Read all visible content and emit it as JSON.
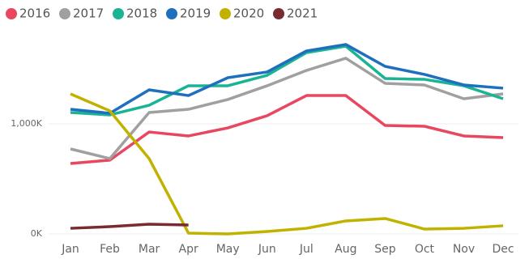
{
  "chart_data": {
    "type": "line",
    "categories": [
      "Jan",
      "Feb",
      "Mar",
      "Apr",
      "May",
      "Jun",
      "Jul",
      "Aug",
      "Sep",
      "Oct",
      "Nov",
      "Dec"
    ],
    "series": [
      {
        "name": "2016",
        "color": "#e8475f",
        "values": [
          640,
          670,
          926,
          890,
          963,
          1074,
          1257,
          1257,
          985,
          978,
          890,
          875
        ]
      },
      {
        "name": "2017",
        "color": "#a0a0a0",
        "values": [
          772,
          684,
          1103,
          1132,
          1221,
          1346,
          1485,
          1596,
          1368,
          1353,
          1228,
          1272
        ]
      },
      {
        "name": "2018",
        "color": "#1ab394",
        "values": [
          1103,
          1081,
          1169,
          1346,
          1346,
          1441,
          1647,
          1706,
          1412,
          1404,
          1346,
          1228
        ]
      },
      {
        "name": "2019",
        "color": "#1f6fbf",
        "values": [
          1132,
          1096,
          1309,
          1257,
          1419,
          1471,
          1662,
          1721,
          1522,
          1449,
          1353,
          1324
        ]
      },
      {
        "name": "2020",
        "color": "#c2b200",
        "values": [
          1272,
          1118,
          684,
          7,
          0,
          22,
          51,
          118,
          140,
          44,
          51,
          74
        ]
      },
      {
        "name": "2021",
        "color": "#7a2a31",
        "values": [
          51,
          66,
          88,
          81,
          null,
          null,
          null,
          null,
          null,
          null,
          null,
          null
        ]
      }
    ],
    "ylim": [
      0,
      1800
    ],
    "yticks": [
      {
        "value": 0,
        "label": "0K"
      },
      {
        "value": 1000,
        "label": "1,000K"
      }
    ],
    "grid": true
  }
}
